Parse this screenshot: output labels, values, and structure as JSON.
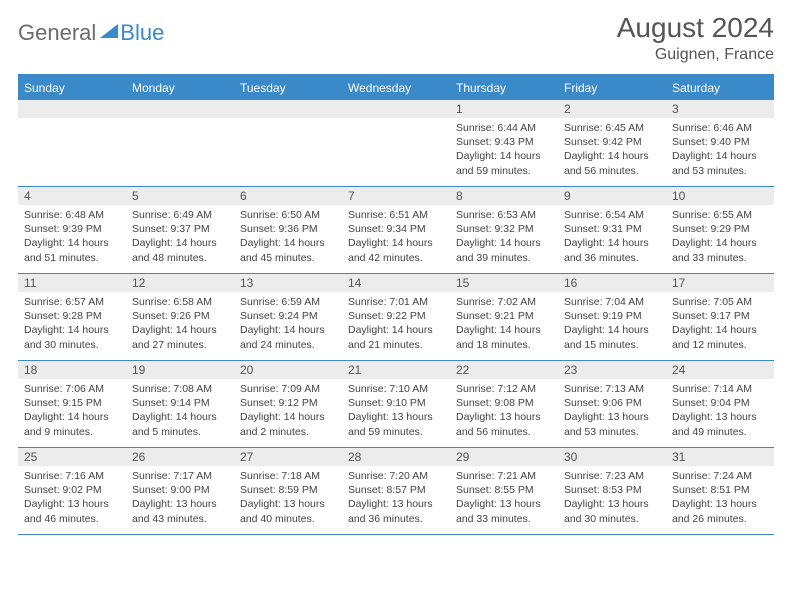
{
  "logo": {
    "word1": "General",
    "word2": "Blue"
  },
  "header": {
    "month_title": "August 2024",
    "location": "Guignen, France"
  },
  "colors": {
    "accent": "#3a8ac9",
    "daynum_bg": "#ececec",
    "text": "#444444",
    "heading": "#555555",
    "row_border": "#3a8ac9"
  },
  "typography": {
    "title_fontsize": 28,
    "location_fontsize": 16,
    "dow_fontsize": 12,
    "detail_fontsize": 10.5
  },
  "calendar": {
    "type": "table",
    "columns": [
      "Sunday",
      "Monday",
      "Tuesday",
      "Wednesday",
      "Thursday",
      "Friday",
      "Saturday"
    ],
    "weeks": [
      [
        null,
        null,
        null,
        null,
        {
          "day": "1",
          "sunrise": "Sunrise: 6:44 AM",
          "sunset": "Sunset: 9:43 PM",
          "daylight": "Daylight: 14 hours and 59 minutes."
        },
        {
          "day": "2",
          "sunrise": "Sunrise: 6:45 AM",
          "sunset": "Sunset: 9:42 PM",
          "daylight": "Daylight: 14 hours and 56 minutes."
        },
        {
          "day": "3",
          "sunrise": "Sunrise: 6:46 AM",
          "sunset": "Sunset: 9:40 PM",
          "daylight": "Daylight: 14 hours and 53 minutes."
        }
      ],
      [
        {
          "day": "4",
          "sunrise": "Sunrise: 6:48 AM",
          "sunset": "Sunset: 9:39 PM",
          "daylight": "Daylight: 14 hours and 51 minutes."
        },
        {
          "day": "5",
          "sunrise": "Sunrise: 6:49 AM",
          "sunset": "Sunset: 9:37 PM",
          "daylight": "Daylight: 14 hours and 48 minutes."
        },
        {
          "day": "6",
          "sunrise": "Sunrise: 6:50 AM",
          "sunset": "Sunset: 9:36 PM",
          "daylight": "Daylight: 14 hours and 45 minutes."
        },
        {
          "day": "7",
          "sunrise": "Sunrise: 6:51 AM",
          "sunset": "Sunset: 9:34 PM",
          "daylight": "Daylight: 14 hours and 42 minutes."
        },
        {
          "day": "8",
          "sunrise": "Sunrise: 6:53 AM",
          "sunset": "Sunset: 9:32 PM",
          "daylight": "Daylight: 14 hours and 39 minutes."
        },
        {
          "day": "9",
          "sunrise": "Sunrise: 6:54 AM",
          "sunset": "Sunset: 9:31 PM",
          "daylight": "Daylight: 14 hours and 36 minutes."
        },
        {
          "day": "10",
          "sunrise": "Sunrise: 6:55 AM",
          "sunset": "Sunset: 9:29 PM",
          "daylight": "Daylight: 14 hours and 33 minutes."
        }
      ],
      [
        {
          "day": "11",
          "sunrise": "Sunrise: 6:57 AM",
          "sunset": "Sunset: 9:28 PM",
          "daylight": "Daylight: 14 hours and 30 minutes."
        },
        {
          "day": "12",
          "sunrise": "Sunrise: 6:58 AM",
          "sunset": "Sunset: 9:26 PM",
          "daylight": "Daylight: 14 hours and 27 minutes."
        },
        {
          "day": "13",
          "sunrise": "Sunrise: 6:59 AM",
          "sunset": "Sunset: 9:24 PM",
          "daylight": "Daylight: 14 hours and 24 minutes."
        },
        {
          "day": "14",
          "sunrise": "Sunrise: 7:01 AM",
          "sunset": "Sunset: 9:22 PM",
          "daylight": "Daylight: 14 hours and 21 minutes."
        },
        {
          "day": "15",
          "sunrise": "Sunrise: 7:02 AM",
          "sunset": "Sunset: 9:21 PM",
          "daylight": "Daylight: 14 hours and 18 minutes."
        },
        {
          "day": "16",
          "sunrise": "Sunrise: 7:04 AM",
          "sunset": "Sunset: 9:19 PM",
          "daylight": "Daylight: 14 hours and 15 minutes."
        },
        {
          "day": "17",
          "sunrise": "Sunrise: 7:05 AM",
          "sunset": "Sunset: 9:17 PM",
          "daylight": "Daylight: 14 hours and 12 minutes."
        }
      ],
      [
        {
          "day": "18",
          "sunrise": "Sunrise: 7:06 AM",
          "sunset": "Sunset: 9:15 PM",
          "daylight": "Daylight: 14 hours and 9 minutes."
        },
        {
          "day": "19",
          "sunrise": "Sunrise: 7:08 AM",
          "sunset": "Sunset: 9:14 PM",
          "daylight": "Daylight: 14 hours and 5 minutes."
        },
        {
          "day": "20",
          "sunrise": "Sunrise: 7:09 AM",
          "sunset": "Sunset: 9:12 PM",
          "daylight": "Daylight: 14 hours and 2 minutes."
        },
        {
          "day": "21",
          "sunrise": "Sunrise: 7:10 AM",
          "sunset": "Sunset: 9:10 PM",
          "daylight": "Daylight: 13 hours and 59 minutes."
        },
        {
          "day": "22",
          "sunrise": "Sunrise: 7:12 AM",
          "sunset": "Sunset: 9:08 PM",
          "daylight": "Daylight: 13 hours and 56 minutes."
        },
        {
          "day": "23",
          "sunrise": "Sunrise: 7:13 AM",
          "sunset": "Sunset: 9:06 PM",
          "daylight": "Daylight: 13 hours and 53 minutes."
        },
        {
          "day": "24",
          "sunrise": "Sunrise: 7:14 AM",
          "sunset": "Sunset: 9:04 PM",
          "daylight": "Daylight: 13 hours and 49 minutes."
        }
      ],
      [
        {
          "day": "25",
          "sunrise": "Sunrise: 7:16 AM",
          "sunset": "Sunset: 9:02 PM",
          "daylight": "Daylight: 13 hours and 46 minutes."
        },
        {
          "day": "26",
          "sunrise": "Sunrise: 7:17 AM",
          "sunset": "Sunset: 9:00 PM",
          "daylight": "Daylight: 13 hours and 43 minutes."
        },
        {
          "day": "27",
          "sunrise": "Sunrise: 7:18 AM",
          "sunset": "Sunset: 8:59 PM",
          "daylight": "Daylight: 13 hours and 40 minutes."
        },
        {
          "day": "28",
          "sunrise": "Sunrise: 7:20 AM",
          "sunset": "Sunset: 8:57 PM",
          "daylight": "Daylight: 13 hours and 36 minutes."
        },
        {
          "day": "29",
          "sunrise": "Sunrise: 7:21 AM",
          "sunset": "Sunset: 8:55 PM",
          "daylight": "Daylight: 13 hours and 33 minutes."
        },
        {
          "day": "30",
          "sunrise": "Sunrise: 7:23 AM",
          "sunset": "Sunset: 8:53 PM",
          "daylight": "Daylight: 13 hours and 30 minutes."
        },
        {
          "day": "31",
          "sunrise": "Sunrise: 7:24 AM",
          "sunset": "Sunset: 8:51 PM",
          "daylight": "Daylight: 13 hours and 26 minutes."
        }
      ]
    ]
  }
}
